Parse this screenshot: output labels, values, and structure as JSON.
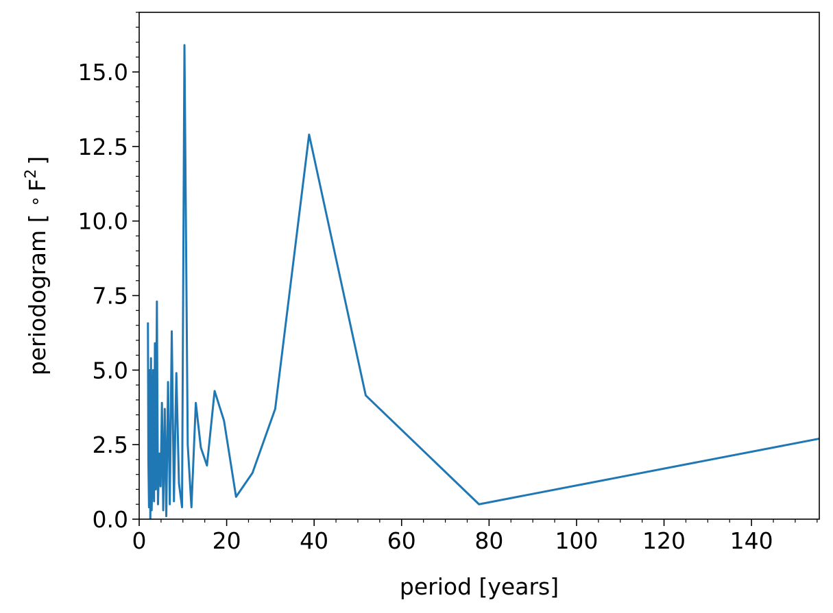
{
  "chart_data": {
    "type": "line",
    "title": "",
    "xlabel": "period [years]",
    "ylabel_text": "periodogram [ ",
    "ylabel_degree": "∘",
    "ylabel_unit": "F",
    "ylabel_exponent": "2",
    "ylabel_close": "]",
    "xlim": [
      0,
      155.5
    ],
    "ylim": [
      0,
      17
    ],
    "xticks": [
      0,
      20,
      40,
      60,
      80,
      100,
      120,
      140
    ],
    "xtick_labels": [
      "0",
      "20",
      "40",
      "60",
      "80",
      "100",
      "120",
      "140"
    ],
    "x_minor_step": 5,
    "yticks": [
      0,
      2.5,
      5,
      7.5,
      10,
      12.5,
      15
    ],
    "ytick_labels": [
      "0.0",
      "2.5",
      "5.0",
      "7.5",
      "10.0",
      "12.5",
      "15.0"
    ],
    "y_minor_step": 0.5,
    "grid": false,
    "line_color": "#1f77b4",
    "series": [
      {
        "x": [
          2.0,
          2.1,
          2.25,
          2.4,
          2.55,
          2.7,
          2.85,
          3.0,
          3.2,
          3.4,
          3.6,
          3.8,
          4.05,
          4.3,
          4.6,
          4.9,
          5.2,
          5.5,
          5.85,
          6.2,
          6.6,
          7.0,
          7.45,
          7.95,
          8.5,
          9.1,
          9.8,
          10.35,
          11.1,
          11.95,
          12.95,
          14.1,
          15.5,
          17.25,
          19.4,
          22.15,
          25.9,
          31.1,
          38.85,
          51.8,
          77.7,
          155.5
        ],
        "y": [
          6.6,
          2.0,
          0.4,
          5.0,
          0.0,
          5.4,
          0.3,
          1.2,
          5.0,
          0.6,
          5.9,
          1.0,
          7.3,
          0.5,
          2.2,
          1.1,
          3.9,
          0.3,
          3.7,
          0.1,
          4.6,
          0.5,
          6.3,
          0.6,
          4.9,
          1.2,
          0.4,
          15.9,
          2.5,
          0.4,
          3.9,
          2.4,
          1.8,
          4.3,
          3.3,
          0.75,
          1.55,
          3.7,
          12.9,
          4.15,
          0.5,
          2.7
        ]
      }
    ]
  }
}
